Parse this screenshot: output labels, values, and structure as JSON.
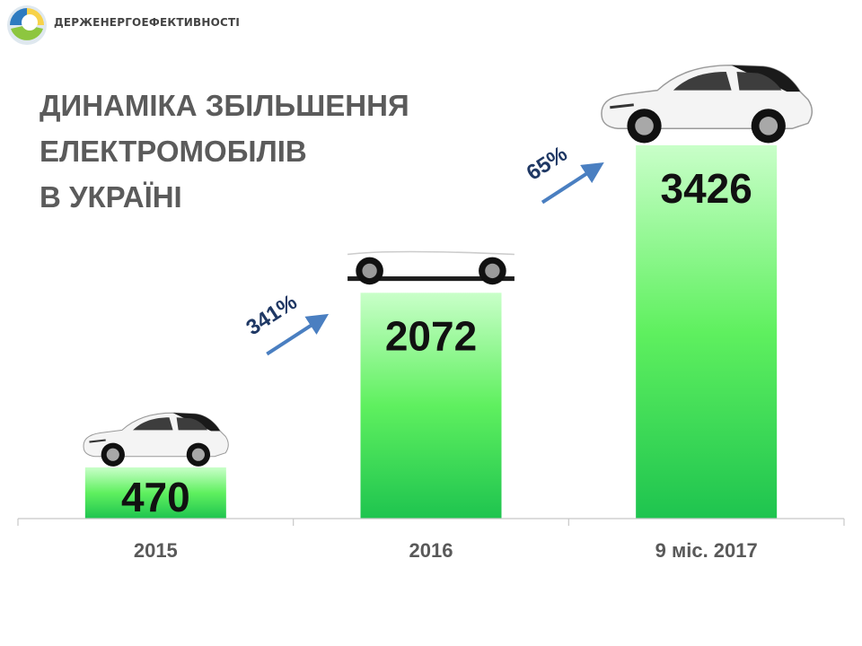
{
  "header": {
    "org_name": "ДЕРЖЕНЕРГОЕФЕКТИВНОСТІ",
    "logo_icon": "globe-logo-icon",
    "title_lines": [
      "ДИНАМІКА ЗБІЛЬШЕННЯ",
      "ЕЛЕКТРОМОБІЛІВ",
      "В УКРАЇНІ"
    ]
  },
  "chart_data": {
    "type": "bar",
    "categories": [
      "2015",
      "2016",
      "9 міс. 2017"
    ],
    "values": [
      470,
      2072,
      3426
    ],
    "data_labels": [
      "470",
      "2072",
      "3426"
    ],
    "ylim": [
      0,
      4100
    ],
    "grid": false,
    "bar_color_top": "#c9ffc9",
    "bar_color_bottom": "#1ec44f",
    "growth_annotations": [
      {
        "from": 0,
        "to": 1,
        "label": "341%"
      },
      {
        "from": 1,
        "to": 2,
        "label": "65%"
      }
    ],
    "bar_icons": [
      "electric-car-icon",
      "car-wheels-icon",
      "electric-car-icon"
    ]
  }
}
